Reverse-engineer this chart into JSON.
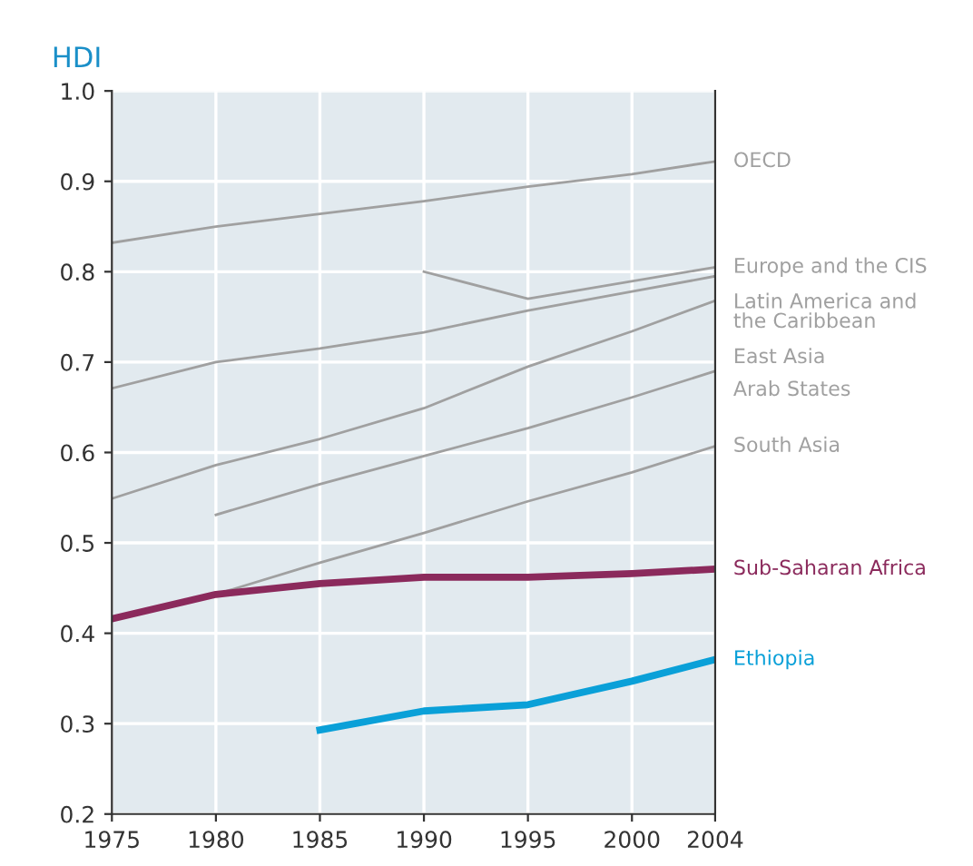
{
  "chart_data": {
    "type": "line",
    "ylabel": "HDI",
    "xlim": [
      1975,
      2004
    ],
    "xticks": [
      1975,
      1980,
      1985,
      1990,
      1995,
      2000,
      2004
    ],
    "ylim": [
      0.2,
      1.0
    ],
    "yticks": [
      0.2,
      0.3,
      0.4,
      0.5,
      0.6,
      0.7,
      0.8,
      0.9,
      {
        "value": 1,
        "label": "1.0"
      }
    ],
    "grid": true,
    "legend": false,
    "marker": "none",
    "line_style": "solid",
    "series": [
      {
        "name": "OECD",
        "color": "#a0a0a0",
        "x": [
          1975,
          1980,
          1985,
          1990,
          1995,
          2000,
          2004
        ],
        "values": [
          0.832,
          0.85,
          0.864,
          0.878,
          0.894,
          0.908,
          0.922
        ]
      },
      {
        "name": "Europe and the CIS",
        "color": "#a0a0a0",
        "x": [
          1990,
          1995,
          2004
        ],
        "values": [
          0.8,
          0.77,
          0.805
        ]
      },
      {
        "name": "Latin America and\nthe Caribbean",
        "color": "#a0a0a0",
        "x": [
          1975,
          1980,
          1985,
          1990,
          1995,
          2000,
          2004
        ],
        "values": [
          0.671,
          0.7,
          0.715,
          0.733,
          0.757,
          0.778,
          0.795
        ]
      },
      {
        "name": "East Asia",
        "color": "#a0a0a0",
        "x": [
          1975,
          1980,
          1985,
          1990,
          1995,
          2000,
          2004
        ],
        "values": [
          0.549,
          0.586,
          0.615,
          0.649,
          0.695,
          0.734,
          0.768
        ]
      },
      {
        "name": "Arab States",
        "color": "#a0a0a0",
        "x": [
          1980,
          1985,
          1990,
          1995,
          2000,
          2004
        ],
        "values": [
          0.531,
          0.565,
          0.596,
          0.627,
          0.661,
          0.69
        ]
      },
      {
        "name": "South Asia",
        "color": "#a0a0a0",
        "x": [
          1980,
          1985,
          1990,
          1995,
          2000,
          2004
        ],
        "values": [
          0.443,
          0.478,
          0.511,
          0.546,
          0.578,
          0.607
        ]
      },
      {
        "name": "Sub-Saharan Africa",
        "color": "#8b2a5c",
        "x": [
          1975,
          1980,
          1985,
          1990,
          1995,
          2000,
          2004
        ],
        "values": [
          0.416,
          0.443,
          0.455,
          0.462,
          0.462,
          0.466,
          0.471
        ]
      },
      {
        "name": "Ethiopia",
        "color": "#0aa0d8",
        "x": [
          1985,
          1990,
          1995,
          2000,
          2004
        ],
        "values": [
          0.293,
          0.314,
          0.321,
          0.347,
          0.371
        ]
      }
    ]
  }
}
